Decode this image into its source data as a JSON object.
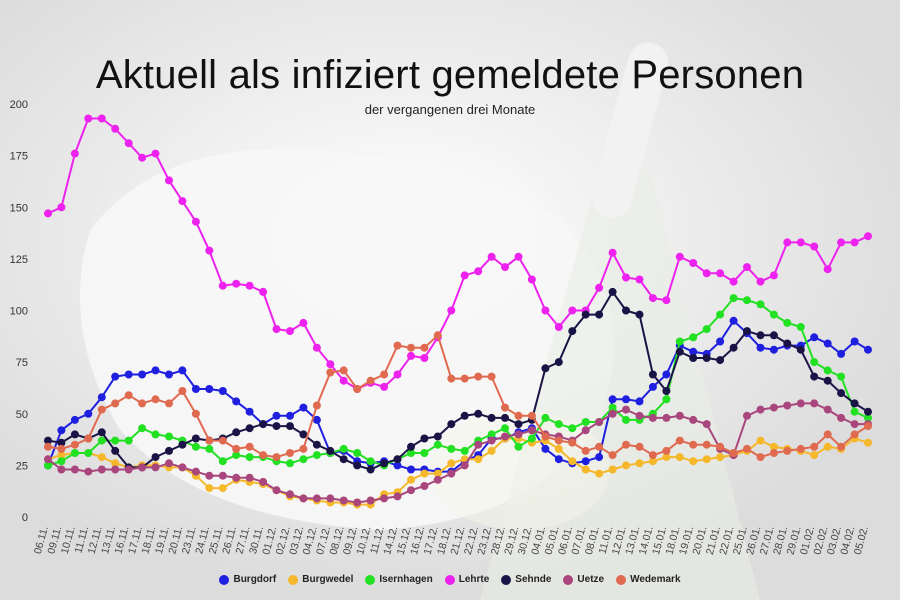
{
  "chart_data": {
    "type": "line",
    "title": "Aktuell als infiziert gemeldete Personen",
    "subtitle": "der vergangenen drei Monate",
    "xlabel": "",
    "ylabel": "",
    "ylim": [
      0,
      200
    ],
    "yticks": [
      0,
      25,
      50,
      75,
      100,
      125,
      150,
      175,
      200
    ],
    "grid": false,
    "legend": "bottom",
    "x_tick_labels": [
      "06.11.",
      "09.11.",
      "10.11.",
      "11.11.",
      "12.11.",
      "13.11.",
      "16.11.",
      "17.11.",
      "18.11.",
      "19.11.",
      "20.11.",
      "23.11.",
      "24.11.",
      "25.11.",
      "26.11.",
      "27.11.",
      "30.11.",
      "01.12.",
      "02.12.",
      "03.12.",
      "04.12.",
      "07.12.",
      "08.12.",
      "09.12.",
      "10.12.",
      "11.12.",
      "14.12.",
      "15.12.",
      "16.12.",
      "17.12.",
      "18.12.",
      "21.12.",
      "22.12.",
      "23.12.",
      "28.12.",
      "29.12.",
      "30.12.",
      "04.01.",
      "05.01.",
      "06.01.",
      "07.01.",
      "08.01.",
      "11.01.",
      "12.01.",
      "13.01.",
      "14.01.",
      "15.01.",
      "18.01.",
      "19.01.",
      "20.01.",
      "21.01.",
      "22.01.",
      "25.01.",
      "26.01.",
      "27.01.",
      "28.01.",
      "29.01.",
      "01.02.",
      "02.02.",
      "03.02.",
      "04.02.",
      "05.02."
    ],
    "series": [
      {
        "name": "Burgdorf",
        "color": "#1f1fe0",
        "values": [
          25,
          42,
          47,
          50,
          58,
          68,
          69,
          69,
          71,
          69,
          71,
          62,
          62,
          61,
          56,
          51,
          45,
          49,
          49,
          53,
          47,
          31,
          32,
          27,
          26,
          27,
          25,
          23,
          23,
          22,
          22,
          27,
          30,
          38,
          38,
          41,
          43,
          33,
          28,
          26,
          27,
          29,
          57,
          57,
          56,
          63,
          69,
          83,
          80,
          79,
          85,
          95,
          89,
          82,
          81,
          83,
          83,
          87,
          84,
          79,
          85,
          81
        ]
      },
      {
        "name": "Burgwedel",
        "color": "#f5b82a",
        "values": [
          28,
          30,
          31,
          31,
          29,
          26,
          24,
          25,
          25,
          24,
          24,
          20,
          14,
          14,
          18,
          17,
          16,
          13,
          10,
          9,
          8,
          7,
          7,
          6,
          6,
          11,
          12,
          18,
          21,
          21,
          26,
          28,
          28,
          32,
          38,
          38,
          36,
          37,
          33,
          27,
          23,
          21,
          23,
          25,
          26,
          27,
          29,
          29,
          27,
          28,
          29,
          30,
          32,
          37,
          34,
          33,
          32,
          30,
          34,
          33,
          38,
          36
        ]
      },
      {
        "name": "Isernhagen",
        "color": "#22e022",
        "values": [
          25,
          27,
          31,
          31,
          37,
          37,
          37,
          43,
          40,
          39,
          37,
          34,
          33,
          27,
          30,
          29,
          29,
          27,
          26,
          28,
          30,
          31,
          33,
          31,
          27,
          25,
          28,
          31,
          31,
          35,
          33,
          32,
          37,
          40,
          43,
          34,
          38,
          48,
          45,
          43,
          46,
          46,
          53,
          47,
          47,
          50,
          57,
          85,
          87,
          91,
          98,
          106,
          105,
          103,
          98,
          94,
          92,
          75,
          71,
          68,
          51,
          48
        ]
      },
      {
        "name": "Lehrte",
        "color": "#ee22ee",
        "values": [
          147,
          150,
          176,
          193,
          193,
          188,
          181,
          174,
          176,
          163,
          153,
          143,
          129,
          112,
          113,
          112,
          109,
          91,
          90,
          94,
          82,
          74,
          66,
          62,
          65,
          63,
          69,
          78,
          77,
          87,
          100,
          117,
          119,
          126,
          121,
          126,
          115,
          100,
          92,
          100,
          100,
          111,
          128,
          116,
          115,
          106,
          105,
          126,
          123,
          118,
          118,
          114,
          121,
          114,
          117,
          133,
          133,
          131,
          120,
          133,
          133,
          136
        ]
      },
      {
        "name": "Sehnde",
        "color": "#1a1446",
        "values": [
          37,
          36,
          40,
          38,
          41,
          32,
          24,
          24,
          29,
          32,
          35,
          38,
          37,
          38,
          41,
          43,
          45,
          44,
          44,
          40,
          35,
          32,
          28,
          25,
          23,
          26,
          28,
          34,
          38,
          39,
          45,
          49,
          50,
          48,
          48,
          45,
          47,
          72,
          75,
          90,
          98,
          98,
          109,
          100,
          98,
          69,
          61,
          80,
          77,
          77,
          76,
          82,
          90,
          88,
          88,
          84,
          81,
          68,
          66,
          60,
          55,
          51
        ]
      },
      {
        "name": "Uetze",
        "color": "#a8467d",
        "values": [
          28,
          23,
          23,
          22,
          23,
          23,
          23,
          24,
          24,
          26,
          24,
          22,
          20,
          20,
          19,
          19,
          17,
          13,
          11,
          9,
          9,
          9,
          8,
          7,
          8,
          9,
          10,
          13,
          15,
          18,
          21,
          25,
          35,
          37,
          39,
          40,
          42,
          40,
          39,
          37,
          42,
          46,
          50,
          52,
          49,
          48,
          48,
          49,
          47,
          45,
          33,
          30,
          49,
          52,
          53,
          54,
          55,
          55,
          52,
          48,
          45,
          45
        ]
      },
      {
        "name": "Wedemark",
        "color": "#e06a50",
        "values": [
          34,
          33,
          35,
          38,
          52,
          55,
          59,
          55,
          57,
          55,
          61,
          50,
          37,
          37,
          33,
          34,
          30,
          29,
          31,
          33,
          54,
          70,
          71,
          62,
          66,
          69,
          83,
          82,
          82,
          88,
          67,
          67,
          68,
          68,
          53,
          49,
          49,
          39,
          37,
          36,
          32,
          34,
          30,
          35,
          34,
          30,
          32,
          37,
          35,
          35,
          34,
          31,
          33,
          29,
          31,
          32,
          33,
          34,
          40,
          34,
          40,
          44
        ]
      }
    ]
  }
}
